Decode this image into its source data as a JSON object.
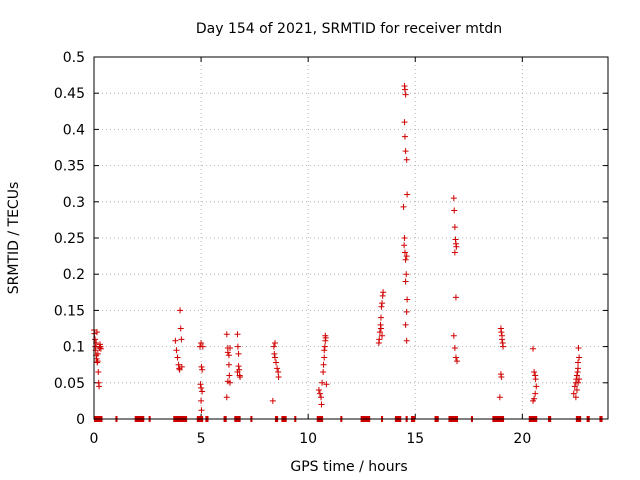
{
  "chart_data": {
    "type": "scatter",
    "title": "Day 154 of 2021, SRMTID for receiver mtdn",
    "xlabel": "GPS time / hours",
    "ylabel": "SRMTID / TECUs",
    "xlim": [
      0,
      24
    ],
    "ylim": [
      0,
      0.5
    ],
    "xticks": [
      0,
      5,
      10,
      15,
      20
    ],
    "yticks": [
      0,
      0.05,
      0.1,
      0.15,
      0.2,
      0.25,
      0.3,
      0.35,
      0.4,
      0.45,
      0.5
    ],
    "grid": true,
    "marker": "+",
    "color": "#d00000",
    "series": [
      {
        "name": "SRMTID",
        "points": [
          [
            0.0,
            0.123
          ],
          [
            0.02,
            0.118
          ],
          [
            0.05,
            0.11
          ],
          [
            0.06,
            0.1
          ],
          [
            0.08,
            0.095
          ],
          [
            0.1,
            0.088
          ],
          [
            0.12,
            0.083
          ],
          [
            0.14,
            0.12
          ],
          [
            0.15,
            0.078
          ],
          [
            0.17,
            0.08
          ],
          [
            0.2,
            0.065
          ],
          [
            0.22,
            0.05
          ],
          [
            0.24,
            0.045
          ],
          [
            0.26,
            0.098
          ],
          [
            0.28,
            0.103
          ],
          [
            0.3,
            0.1
          ],
          [
            0.32,
            0.097
          ],
          [
            0.18,
            0.09
          ],
          [
            0.1,
            0.105
          ],
          [
            3.8,
            0.108
          ],
          [
            3.85,
            0.095
          ],
          [
            3.9,
            0.085
          ],
          [
            3.95,
            0.075
          ],
          [
            3.98,
            0.07
          ],
          [
            4.0,
            0.068
          ],
          [
            4.02,
            0.15
          ],
          [
            4.05,
            0.125
          ],
          [
            4.08,
            0.11
          ],
          [
            4.1,
            0.072
          ],
          [
            4.95,
            0.1
          ],
          [
            5.0,
            0.105
          ],
          [
            5.02,
            0.072
          ],
          [
            5.05,
            0.068
          ],
          [
            4.97,
            0.048
          ],
          [
            5.0,
            0.043
          ],
          [
            5.05,
            0.038
          ],
          [
            5.0,
            0.025
          ],
          [
            5.02,
            0.012
          ],
          [
            5.08,
            0.1
          ],
          [
            6.2,
            0.117
          ],
          [
            6.25,
            0.098
          ],
          [
            6.25,
            0.092
          ],
          [
            6.3,
            0.088
          ],
          [
            6.3,
            0.075
          ],
          [
            6.32,
            0.06
          ],
          [
            6.35,
            0.05
          ],
          [
            6.2,
            0.03
          ],
          [
            6.25,
            0.052
          ],
          [
            6.35,
            0.098
          ],
          [
            6.7,
            0.117
          ],
          [
            6.72,
            0.1
          ],
          [
            6.75,
            0.09
          ],
          [
            6.75,
            0.073
          ],
          [
            6.78,
            0.068
          ],
          [
            6.8,
            0.06
          ],
          [
            6.82,
            0.058
          ],
          [
            6.7,
            0.065
          ],
          [
            8.4,
            0.1
          ],
          [
            8.42,
            0.09
          ],
          [
            8.45,
            0.085
          ],
          [
            8.5,
            0.078
          ],
          [
            8.55,
            0.07
          ],
          [
            8.6,
            0.065
          ],
          [
            8.62,
            0.058
          ],
          [
            8.45,
            0.105
          ],
          [
            8.35,
            0.025
          ],
          [
            10.5,
            0.04
          ],
          [
            10.55,
            0.035
          ],
          [
            10.6,
            0.03
          ],
          [
            10.62,
            0.02
          ],
          [
            10.65,
            0.05
          ],
          [
            10.7,
            0.065
          ],
          [
            10.72,
            0.075
          ],
          [
            10.75,
            0.085
          ],
          [
            10.75,
            0.095
          ],
          [
            10.78,
            0.1
          ],
          [
            10.8,
            0.108
          ],
          [
            10.8,
            0.115
          ],
          [
            10.82,
            0.112
          ],
          [
            10.85,
            0.048
          ],
          [
            13.3,
            0.105
          ],
          [
            13.32,
            0.11
          ],
          [
            13.35,
            0.12
          ],
          [
            13.38,
            0.13
          ],
          [
            13.4,
            0.14
          ],
          [
            13.42,
            0.155
          ],
          [
            13.45,
            0.16
          ],
          [
            13.48,
            0.17
          ],
          [
            13.5,
            0.175
          ],
          [
            13.4,
            0.125
          ],
          [
            13.45,
            0.115
          ],
          [
            14.5,
            0.46
          ],
          [
            14.52,
            0.455
          ],
          [
            14.55,
            0.448
          ],
          [
            14.5,
            0.41
          ],
          [
            14.52,
            0.39
          ],
          [
            14.55,
            0.37
          ],
          [
            14.6,
            0.358
          ],
          [
            14.62,
            0.31
          ],
          [
            14.45,
            0.293
          ],
          [
            14.5,
            0.25
          ],
          [
            14.48,
            0.24
          ],
          [
            14.52,
            0.23
          ],
          [
            14.55,
            0.22
          ],
          [
            14.6,
            0.225
          ],
          [
            14.58,
            0.2
          ],
          [
            14.55,
            0.19
          ],
          [
            14.62,
            0.165
          ],
          [
            14.6,
            0.148
          ],
          [
            14.55,
            0.13
          ],
          [
            14.6,
            0.108
          ],
          [
            16.8,
            0.305
          ],
          [
            16.82,
            0.288
          ],
          [
            16.85,
            0.265
          ],
          [
            16.88,
            0.248
          ],
          [
            16.9,
            0.242
          ],
          [
            16.92,
            0.238
          ],
          [
            16.85,
            0.23
          ],
          [
            16.9,
            0.168
          ],
          [
            16.8,
            0.115
          ],
          [
            16.85,
            0.098
          ],
          [
            16.9,
            0.085
          ],
          [
            16.95,
            0.08
          ],
          [
            19.0,
            0.125
          ],
          [
            19.02,
            0.12
          ],
          [
            19.05,
            0.115
          ],
          [
            19.05,
            0.11
          ],
          [
            19.08,
            0.105
          ],
          [
            19.1,
            0.1
          ],
          [
            19.0,
            0.062
          ],
          [
            19.02,
            0.058
          ],
          [
            18.95,
            0.03
          ],
          [
            20.5,
            0.097
          ],
          [
            20.55,
            0.065
          ],
          [
            20.6,
            0.06
          ],
          [
            20.62,
            0.055
          ],
          [
            20.65,
            0.045
          ],
          [
            20.6,
            0.035
          ],
          [
            20.55,
            0.028
          ],
          [
            20.5,
            0.025
          ],
          [
            22.4,
            0.035
          ],
          [
            22.45,
            0.045
          ],
          [
            22.5,
            0.05
          ],
          [
            22.52,
            0.055
          ],
          [
            22.55,
            0.06
          ],
          [
            22.58,
            0.065
          ],
          [
            22.6,
            0.07
          ],
          [
            22.6,
            0.078
          ],
          [
            22.65,
            0.085
          ],
          [
            22.62,
            0.098
          ],
          [
            22.5,
            0.03
          ],
          [
            22.55,
            0.04
          ],
          [
            22.6,
            0.05
          ],
          [
            22.65,
            0.055
          ]
        ]
      }
    ],
    "zero_segments": [
      [
        0.0,
        0.35
      ],
      [
        1.0,
        1.05
      ],
      [
        1.9,
        2.3
      ],
      [
        2.55,
        2.6
      ],
      [
        3.7,
        4.3
      ],
      [
        4.8,
        5.05
      ],
      [
        5.2,
        5.3
      ],
      [
        6.05,
        6.15
      ],
      [
        6.55,
        6.8
      ],
      [
        7.3,
        7.35
      ],
      [
        8.45,
        8.55
      ],
      [
        8.75,
        8.95
      ],
      [
        9.35,
        9.4
      ],
      [
        10.4,
        10.65
      ],
      [
        11.5,
        11.55
      ],
      [
        12.45,
        12.85
      ],
      [
        13.4,
        13.45
      ],
      [
        14.05,
        14.3
      ],
      [
        14.55,
        14.6
      ],
      [
        14.8,
        14.95
      ],
      [
        15.9,
        16.05
      ],
      [
        16.55,
        16.95
      ],
      [
        17.6,
        17.65
      ],
      [
        18.6,
        19.1
      ],
      [
        20.3,
        20.65
      ],
      [
        21.2,
        21.3
      ],
      [
        22.5,
        22.7
      ],
      [
        23.0,
        23.1
      ],
      [
        23.6,
        23.7
      ]
    ]
  }
}
